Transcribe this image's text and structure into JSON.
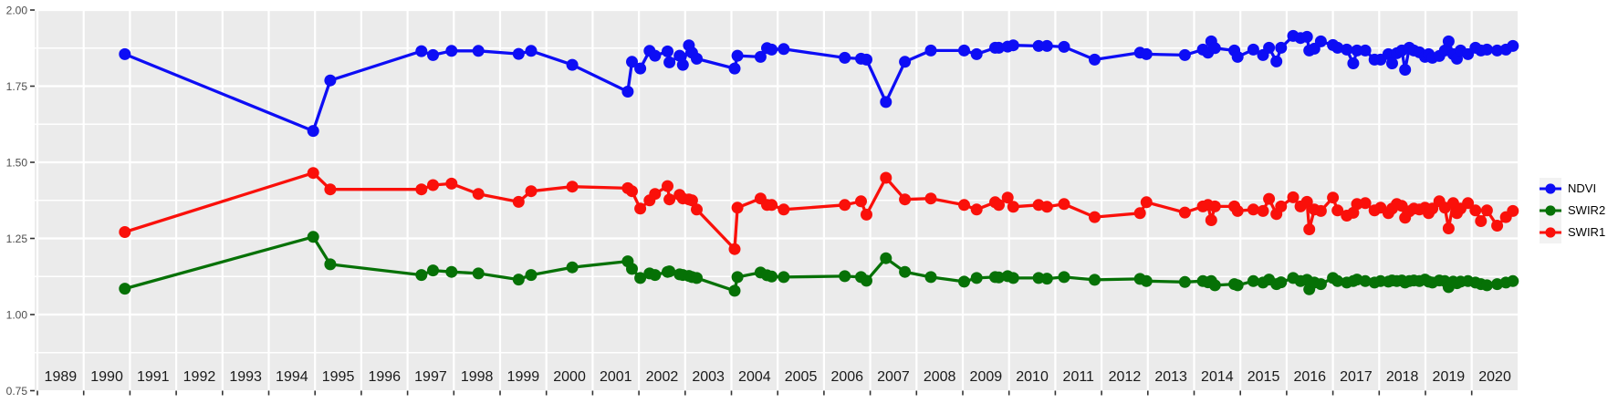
{
  "chart_data": {
    "type": "line",
    "title": "",
    "xlabel": "",
    "ylabel": "",
    "grid": true,
    "colors": {
      "panel_background": "#EBEBEB",
      "gridline": "#FFFFFF",
      "tick_mark": "#333333",
      "y_axis_label": "#4D4D4D",
      "year_label": "#1A1A1A",
      "legend_key_background": "#F2F2F2"
    },
    "y_axis": {
      "ticks": [
        {
          "label": "2.00",
          "value": 2.0
        },
        {
          "label": "1.75",
          "value": 1.75
        },
        {
          "label": "1.50",
          "value": 1.5
        },
        {
          "label": "1.25",
          "value": 1.25
        },
        {
          "label": "1.00",
          "value": 1.0
        },
        {
          "label": "0.75",
          "value": 0.75
        }
      ],
      "minor_ticks": [
        1.875,
        1.625,
        1.375,
        1.125,
        0.875
      ],
      "range": [
        0.75,
        2.0
      ]
    },
    "x_axis": {
      "gridline_years": [
        1989,
        1990,
        1991,
        1992,
        1993,
        1994,
        1995,
        1996,
        1997,
        1998,
        1999,
        2000,
        2001,
        2002,
        2003,
        2004,
        2005,
        2006,
        2007,
        2008,
        2009,
        2010,
        2011,
        2012,
        2013,
        2014,
        2015,
        2016,
        2017,
        2018,
        2019,
        2020,
        2021
      ],
      "year_labels": [
        "1989",
        "1990",
        "1991",
        "1992",
        "1993",
        "1994",
        "1995",
        "1996",
        "1997",
        "1998",
        "1999",
        "2000",
        "2001",
        "2002",
        "2003",
        "2004",
        "2005",
        "2006",
        "2007",
        "2008",
        "2009",
        "2010",
        "2011",
        "2012",
        "2013",
        "2014",
        "2015",
        "2016",
        "2017",
        "2018",
        "2019",
        "2020"
      ],
      "range": [
        1988.94,
        2021.0
      ]
    },
    "legend": {
      "position": "right",
      "entries": [
        {
          "label": "NDVI",
          "color": "#0D0DF5"
        },
        {
          "label": "SWIR2",
          "color": "#067106"
        },
        {
          "label": "SWIR1",
          "color": "#FA100A"
        }
      ]
    },
    "x": [
      1990.89,
      1994.96,
      1995.33,
      1997.3,
      1997.55,
      1997.95,
      1998.53,
      1999.4,
      1999.67,
      2000.56,
      2001.76,
      2001.85,
      2002.03,
      2002.23,
      2002.35,
      2002.62,
      2002.66,
      2002.88,
      2002.95,
      2003.08,
      2003.15,
      2003.25,
      2004.07,
      2004.13,
      2004.63,
      2004.77,
      2004.87,
      2005.13,
      2006.45,
      2006.8,
      2006.92,
      2007.34,
      2007.75,
      2008.31,
      2009.03,
      2009.3,
      2009.7,
      2009.78,
      2009.97,
      2010.09,
      2010.64,
      2010.82,
      2011.19,
      2011.85,
      2012.83,
      2012.97,
      2013.8,
      2014.19,
      2014.3,
      2014.37,
      2014.45,
      2014.87,
      2014.94,
      2015.28,
      2015.49,
      2015.62,
      2015.78,
      2015.88,
      2016.14,
      2016.3,
      2016.44,
      2016.49,
      2016.6,
      2016.74,
      2017.0,
      2017.1,
      2017.3,
      2017.44,
      2017.52,
      2017.7,
      2017.9,
      2018.03,
      2018.2,
      2018.28,
      2018.38,
      2018.49,
      2018.56,
      2018.65,
      2018.75,
      2018.87,
      2018.99,
      2019.07,
      2019.15,
      2019.3,
      2019.42,
      2019.5,
      2019.6,
      2019.68,
      2019.76,
      2019.92,
      2020.08,
      2020.2,
      2020.33,
      2020.55,
      2020.74,
      2020.89
    ],
    "series": [
      {
        "name": "NDVI",
        "color": "#0D0DF5",
        "values": [
          1.855,
          1.603,
          1.769,
          1.865,
          1.852,
          1.866,
          1.866,
          1.856,
          1.866,
          1.82,
          1.732,
          1.83,
          1.808,
          1.866,
          1.85,
          1.864,
          1.828,
          1.85,
          1.82,
          1.884,
          1.86,
          1.84,
          1.808,
          1.85,
          1.846,
          1.875,
          1.87,
          1.872,
          1.843,
          1.84,
          1.837,
          1.698,
          1.83,
          1.867,
          1.867,
          1.855,
          1.876,
          1.876,
          1.88,
          1.884,
          1.882,
          1.882,
          1.879,
          1.837,
          1.86,
          1.855,
          1.852,
          1.87,
          1.86,
          1.897,
          1.875,
          1.867,
          1.846,
          1.87,
          1.852,
          1.876,
          1.831,
          1.876,
          1.915,
          1.908,
          1.912,
          1.867,
          1.873,
          1.897,
          1.885,
          1.876,
          1.87,
          1.825,
          1.867,
          1.867,
          1.837,
          1.837,
          1.855,
          1.825,
          1.858,
          1.867,
          1.804,
          1.876,
          1.867,
          1.861,
          1.846,
          1.855,
          1.843,
          1.849,
          1.867,
          1.897,
          1.855,
          1.84,
          1.867,
          1.855,
          1.876,
          1.867,
          1.87,
          1.867,
          1.87,
          1.882
        ]
      },
      {
        "name": "SWIR2",
        "color": "#067106",
        "values": [
          1.085,
          1.255,
          1.165,
          1.13,
          1.145,
          1.14,
          1.135,
          1.115,
          1.13,
          1.155,
          1.175,
          1.15,
          1.12,
          1.135,
          1.13,
          1.14,
          1.142,
          1.132,
          1.13,
          1.127,
          1.123,
          1.12,
          1.078,
          1.123,
          1.138,
          1.129,
          1.125,
          1.123,
          1.126,
          1.123,
          1.111,
          1.185,
          1.14,
          1.123,
          1.108,
          1.12,
          1.123,
          1.122,
          1.126,
          1.12,
          1.12,
          1.118,
          1.123,
          1.114,
          1.117,
          1.11,
          1.107,
          1.11,
          1.106,
          1.11,
          1.096,
          1.1,
          1.096,
          1.11,
          1.105,
          1.115,
          1.1,
          1.106,
          1.12,
          1.11,
          1.114,
          1.083,
          1.105,
          1.1,
          1.12,
          1.11,
          1.105,
          1.11,
          1.115,
          1.11,
          1.105,
          1.11,
          1.108,
          1.112,
          1.11,
          1.112,
          1.105,
          1.11,
          1.112,
          1.11,
          1.115,
          1.108,
          1.105,
          1.112,
          1.11,
          1.09,
          1.108,
          1.103,
          1.108,
          1.11,
          1.105,
          1.1,
          1.096,
          1.1,
          1.105,
          1.11
        ]
      },
      {
        "name": "SWIR1",
        "color": "#FA100A",
        "values": [
          1.271,
          1.465,
          1.411,
          1.411,
          1.425,
          1.43,
          1.396,
          1.37,
          1.405,
          1.42,
          1.415,
          1.405,
          1.348,
          1.375,
          1.396,
          1.422,
          1.378,
          1.393,
          1.381,
          1.378,
          1.375,
          1.345,
          1.215,
          1.351,
          1.381,
          1.36,
          1.36,
          1.345,
          1.36,
          1.372,
          1.328,
          1.449,
          1.378,
          1.381,
          1.36,
          1.345,
          1.369,
          1.36,
          1.384,
          1.354,
          1.36,
          1.354,
          1.363,
          1.32,
          1.333,
          1.369,
          1.335,
          1.355,
          1.36,
          1.31,
          1.355,
          1.355,
          1.34,
          1.345,
          1.34,
          1.38,
          1.33,
          1.355,
          1.385,
          1.355,
          1.37,
          1.28,
          1.345,
          1.34,
          1.384,
          1.342,
          1.325,
          1.334,
          1.363,
          1.366,
          1.342,
          1.351,
          1.333,
          1.348,
          1.363,
          1.357,
          1.318,
          1.339,
          1.348,
          1.345,
          1.351,
          1.333,
          1.348,
          1.372,
          1.351,
          1.283,
          1.366,
          1.333,
          1.348,
          1.366,
          1.342,
          1.307,
          1.342,
          1.292,
          1.32,
          1.34
        ]
      }
    ]
  }
}
